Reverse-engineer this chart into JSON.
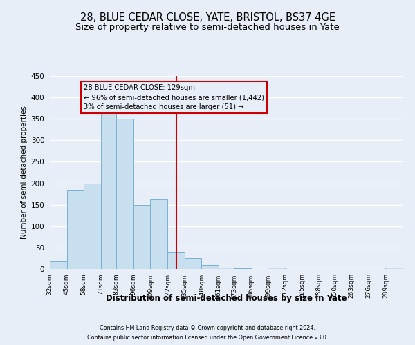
{
  "title": "28, BLUE CEDAR CLOSE, YATE, BRISTOL, BS37 4GE",
  "subtitle": "Size of property relative to semi-detached houses in Yate",
  "xlabel": "Distribution of semi-detached houses by size in Yate",
  "ylabel": "Number of semi-detached properties",
  "footnote1": "Contains HM Land Registry data © Crown copyright and database right 2024.",
  "footnote2": "Contains public sector information licensed under the Open Government Licence v3.0.",
  "bin_labels": [
    "32sqm",
    "45sqm",
    "58sqm",
    "71sqm",
    "83sqm",
    "96sqm",
    "109sqm",
    "122sqm",
    "135sqm",
    "148sqm",
    "161sqm",
    "173sqm",
    "186sqm",
    "199sqm",
    "212sqm",
    "225sqm",
    "238sqm",
    "250sqm",
    "263sqm",
    "276sqm",
    "289sqm"
  ],
  "bar_heights": [
    20,
    183,
    200,
    365,
    350,
    150,
    163,
    40,
    25,
    10,
    4,
    2,
    0,
    4,
    0,
    0,
    0,
    0,
    0,
    0,
    4
  ],
  "bin_edges": [
    32,
    45,
    58,
    71,
    83,
    96,
    109,
    122,
    135,
    148,
    161,
    173,
    186,
    199,
    212,
    225,
    238,
    250,
    263,
    276,
    289,
    302
  ],
  "bar_color": "#c8dff0",
  "bar_edge_color": "#7ab0d4",
  "vline_x": 129,
  "vline_color": "#cc0000",
  "annotation_title": "28 BLUE CEDAR CLOSE: 129sqm",
  "annotation_line1": "← 96% of semi-detached houses are smaller (1,442)",
  "annotation_line2": "3% of semi-detached houses are larger (51) →",
  "annotation_box_color": "#cc0000",
  "ylim": [
    0,
    450
  ],
  "yticks": [
    0,
    50,
    100,
    150,
    200,
    250,
    300,
    350,
    400,
    450
  ],
  "background_color": "#e8eef8",
  "grid_color": "#ffffff",
  "title_fontsize": 10.5,
  "subtitle_fontsize": 9.5
}
